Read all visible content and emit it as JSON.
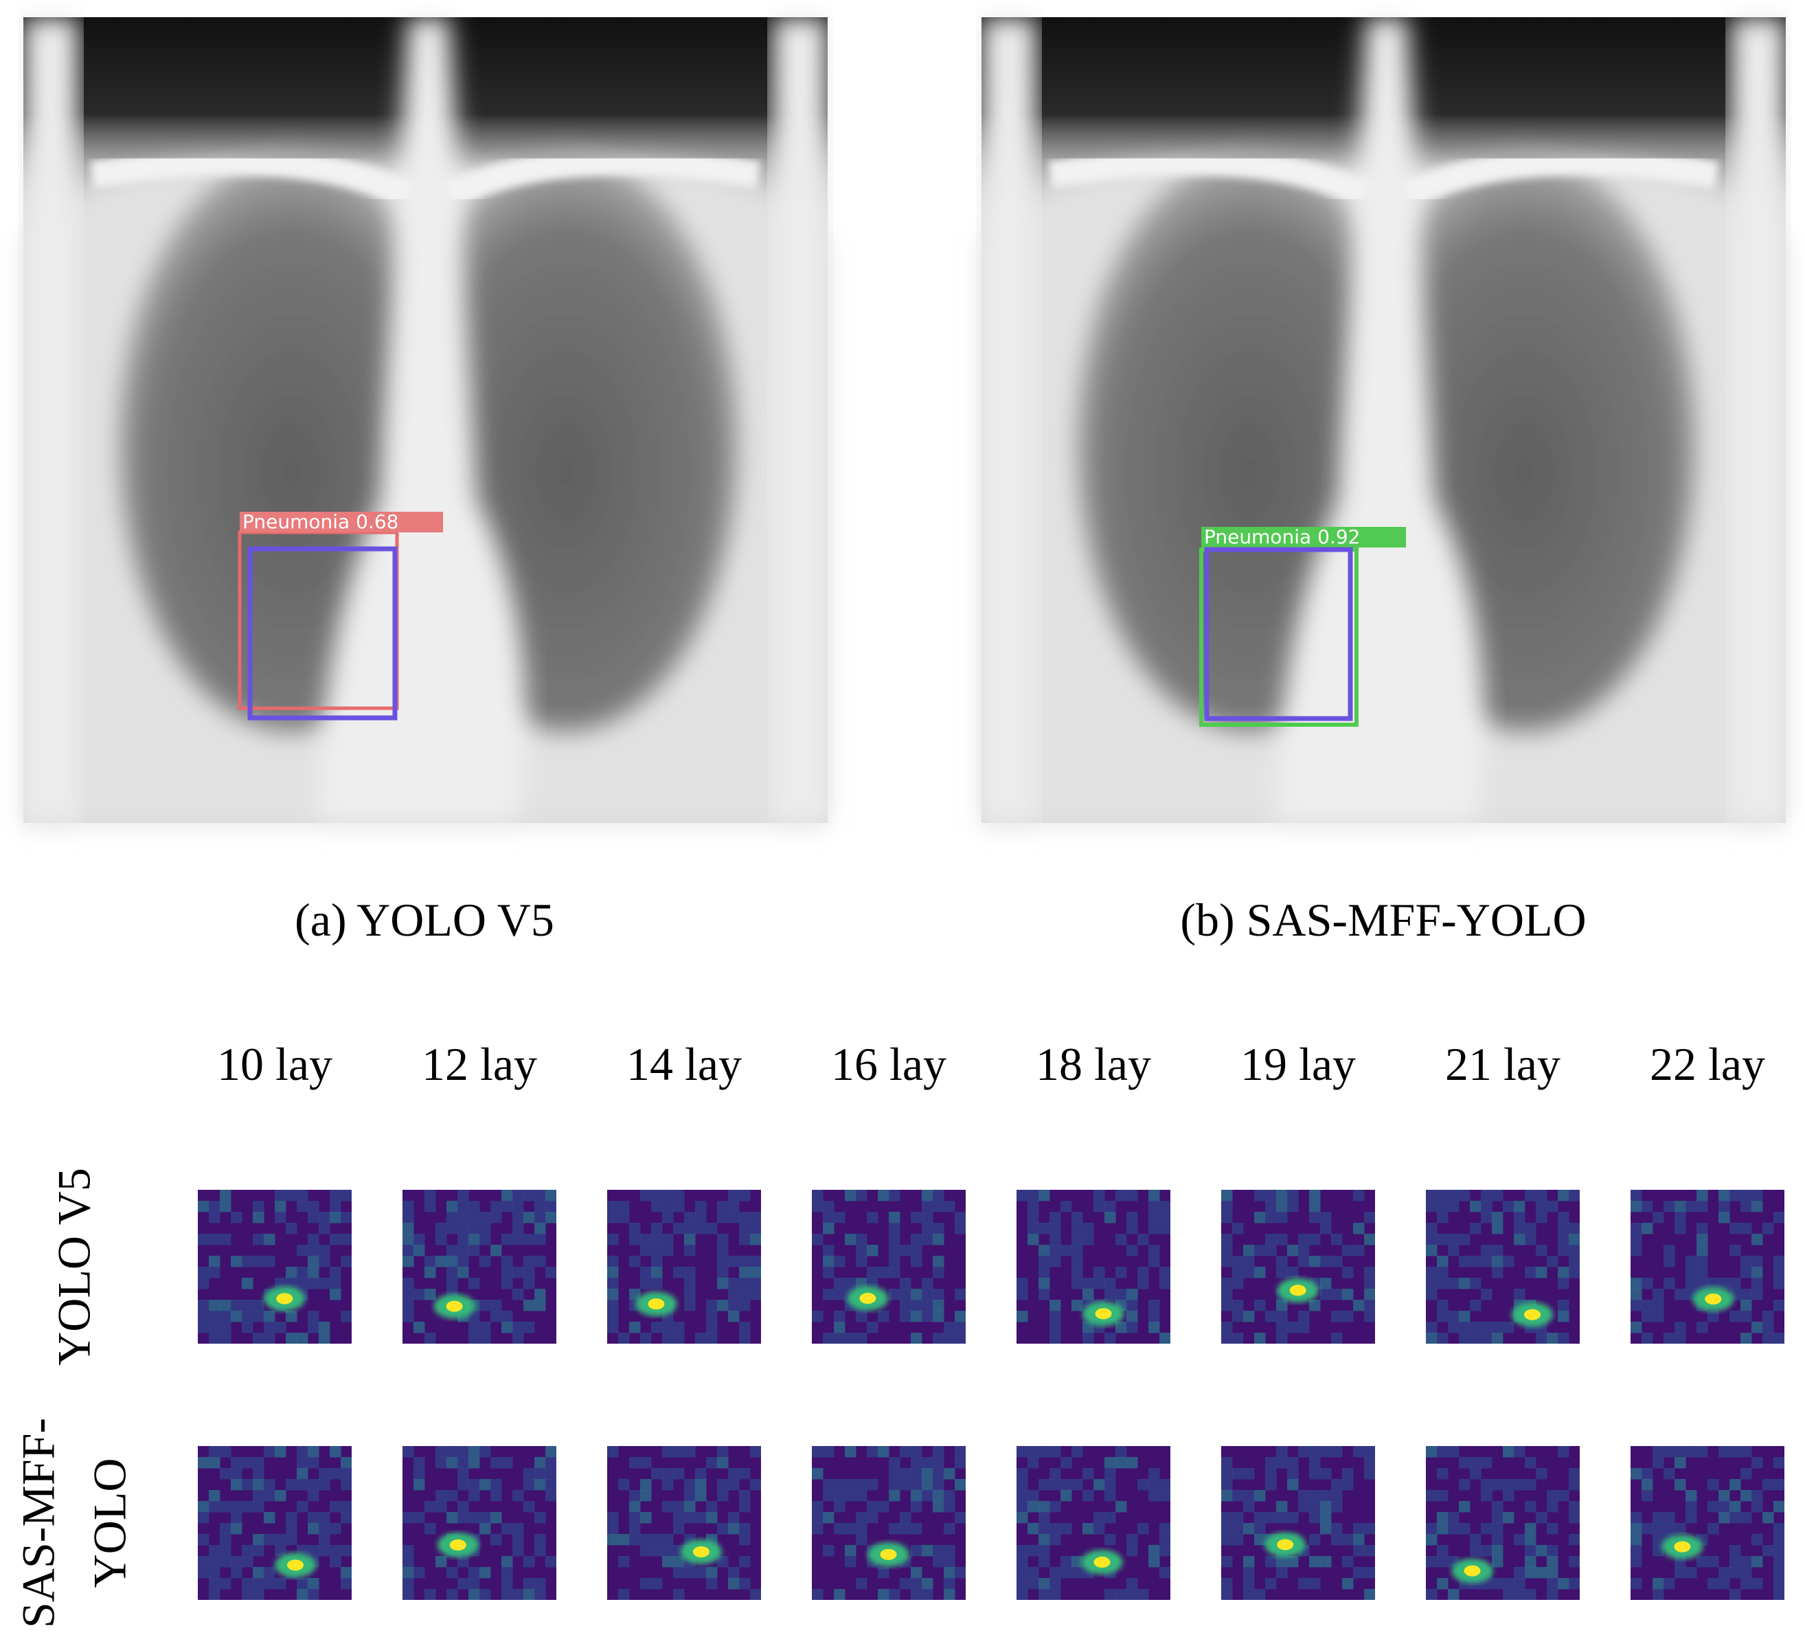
{
  "panels": [
    {
      "caption": "(a) YOLO V5",
      "detection": {
        "label": "Pneumonia 0.68"
      }
    },
    {
      "caption": "(b) SAS-MFF-YOLO",
      "detection": {
        "label": "Pneumonia 0.92"
      }
    }
  ],
  "feature_maps": {
    "columns": [
      "10 lay",
      "12 lay",
      "14 lay",
      "16 lay",
      "18 lay",
      "19 lay",
      "21 lay",
      "22 lay"
    ],
    "rows": [
      {
        "lines": [
          "YOLO V5"
        ]
      },
      {
        "lines": [
          "SAS-MFF-",
          "YOLO"
        ]
      }
    ]
  }
}
